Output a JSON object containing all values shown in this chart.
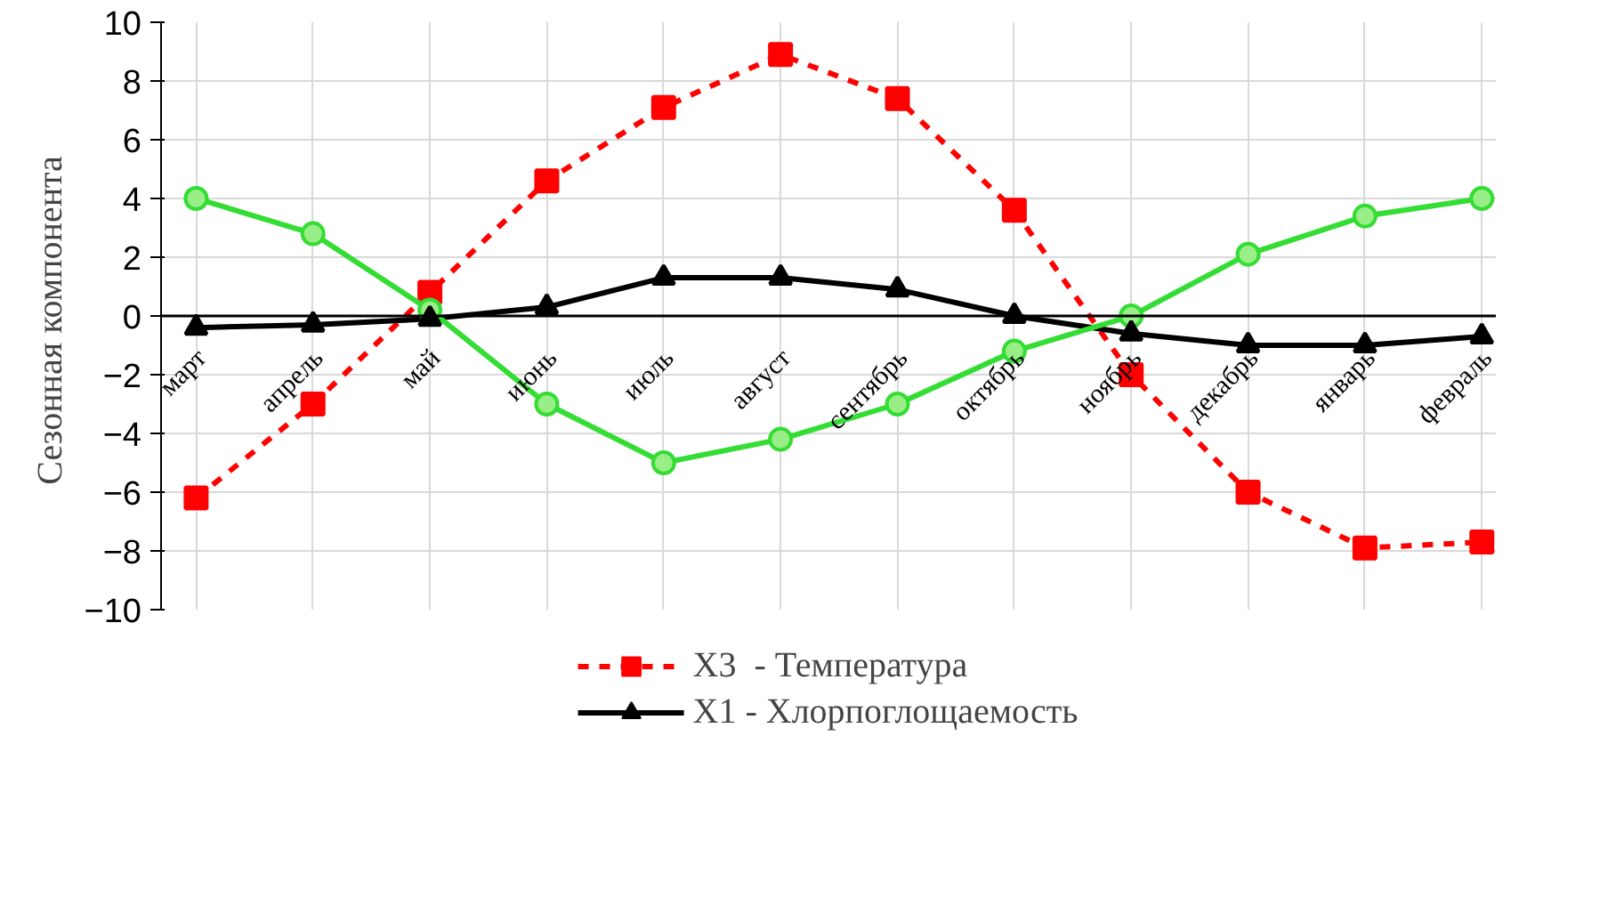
{
  "chart_data": {
    "type": "line",
    "ylabel": "Сезонная  компонента",
    "categories": [
      "март",
      "апрель",
      "май",
      "июнь",
      "июль",
      "август",
      "сентябрь",
      "октябрь",
      "ноябрь",
      "декабрь",
      "январь",
      "февраль"
    ],
    "series": [
      {
        "name": "X3  - Температура",
        "color": "#ff0000",
        "marker": "square",
        "line_style": "dashed",
        "values": [
          -6.2,
          -3.0,
          0.8,
          4.6,
          7.1,
          8.9,
          7.4,
          3.6,
          -2.0,
          -6.0,
          -7.9,
          -7.7
        ]
      },
      {
        "name": "X1 - Хлорпоглощаемость",
        "color": "#000000",
        "marker": "triangle",
        "line_style": "solid",
        "values": [
          -0.4,
          -0.3,
          -0.1,
          0.3,
          1.3,
          1.3,
          0.9,
          0.0,
          -0.6,
          -1.0,
          -1.0,
          -0.7
        ]
      },
      {
        "color": "#33dd33",
        "marker": "circle",
        "line_style": "solid",
        "values": [
          4.0,
          2.8,
          0.2,
          -3.0,
          -5.0,
          -4.2,
          -3.0,
          -1.2,
          0.0,
          2.1,
          3.4,
          4.0
        ]
      }
    ],
    "ylim": [
      -10,
      10
    ],
    "yticks": [
      -10,
      -8,
      -6,
      -4,
      -2,
      0,
      2,
      4,
      6,
      8,
      10
    ],
    "grid": true,
    "legend": "bottom"
  }
}
